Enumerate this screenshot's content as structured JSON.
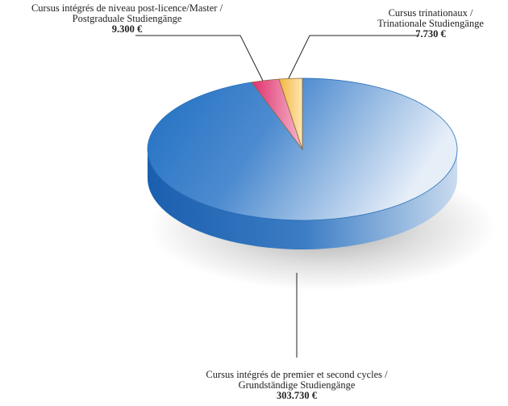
{
  "chart_data": {
    "type": "pie",
    "style": "3d-exploded-tilted",
    "legend": "none",
    "slices": [
      {
        "label": "Cursus intégrés de premier et second cycles / Grundständige Studiengänge",
        "value": 303730,
        "value_label": "303.730 €",
        "color": "#4a86c8"
      },
      {
        "label": "Cursus intégrés de niveau post-licence/Master / Postgraduale Studiengänge",
        "value": 9300,
        "value_label": "9.300 €",
        "color": "#e0457f"
      },
      {
        "label": "Cursus trinationaux / Trinationale Studiengänge",
        "value": 7730,
        "value_label": "7.730 €",
        "color": "#f5c45c"
      }
    ]
  },
  "labels": {
    "master": {
      "line1": "Cursus intégrés de niveau post-licence/Master /",
      "line2": "Postgraduale Studiengänge",
      "value": "9.300 €"
    },
    "trinational": {
      "line1": "Cursus trinationaux /",
      "line2": "Trinationale Studiengänge",
      "value": "7.730 €"
    },
    "undergrad": {
      "line1": "Cursus intégrés de premier et second cycles /",
      "line2": "Grundständige Studiengänge",
      "value": "303.730 €"
    }
  }
}
